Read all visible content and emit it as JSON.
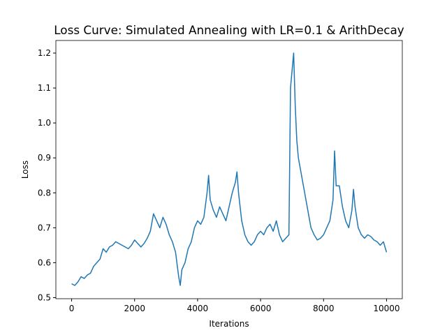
{
  "chart_data": {
    "type": "line",
    "title": "Loss Curve: Simulated Annealing with LR=0.1 & ArithDecay",
    "xlabel": "Iterations",
    "ylabel": "Loss",
    "x": [
      0,
      100,
      200,
      300,
      400,
      500,
      600,
      700,
      800,
      900,
      1000,
      1100,
      1200,
      1300,
      1400,
      1500,
      1600,
      1700,
      1800,
      1900,
      2000,
      2100,
      2200,
      2300,
      2400,
      2500,
      2600,
      2700,
      2800,
      2900,
      3000,
      3100,
      3200,
      3300,
      3400,
      3450,
      3500,
      3600,
      3700,
      3800,
      3900,
      4000,
      4100,
      4200,
      4300,
      4350,
      4400,
      4500,
      4600,
      4700,
      4800,
      4900,
      5000,
      5100,
      5200,
      5250,
      5300,
      5400,
      5500,
      5600,
      5700,
      5800,
      5900,
      6000,
      6100,
      6200,
      6300,
      6400,
      6500,
      6600,
      6700,
      6800,
      6900,
      6950,
      7000,
      7050,
      7100,
      7150,
      7200,
      7300,
      7400,
      7500,
      7600,
      7700,
      7800,
      7900,
      8000,
      8100,
      8200,
      8300,
      8350,
      8400,
      8500,
      8600,
      8700,
      8800,
      8900,
      8950,
      9000,
      9100,
      9200,
      9300,
      9400,
      9500,
      9600,
      9700,
      9800,
      9900,
      10000
    ],
    "series": [
      {
        "name": "Loss",
        "color": "#1f77b4",
        "values": [
          0.54,
          0.535,
          0.545,
          0.56,
          0.555,
          0.565,
          0.57,
          0.59,
          0.6,
          0.61,
          0.64,
          0.63,
          0.645,
          0.65,
          0.66,
          0.655,
          0.65,
          0.645,
          0.64,
          0.65,
          0.665,
          0.655,
          0.645,
          0.655,
          0.67,
          0.69,
          0.74,
          0.72,
          0.7,
          0.73,
          0.71,
          0.68,
          0.66,
          0.63,
          0.56,
          0.535,
          0.58,
          0.6,
          0.64,
          0.66,
          0.7,
          0.72,
          0.71,
          0.73,
          0.8,
          0.85,
          0.78,
          0.75,
          0.73,
          0.76,
          0.74,
          0.72,
          0.76,
          0.8,
          0.83,
          0.86,
          0.8,
          0.72,
          0.68,
          0.66,
          0.65,
          0.66,
          0.68,
          0.69,
          0.68,
          0.7,
          0.71,
          0.69,
          0.72,
          0.68,
          0.66,
          0.67,
          0.68,
          1.1,
          1.15,
          1.2,
          1.05,
          0.95,
          0.9,
          0.85,
          0.8,
          0.75,
          0.7,
          0.68,
          0.665,
          0.67,
          0.68,
          0.7,
          0.72,
          0.78,
          0.92,
          0.82,
          0.82,
          0.76,
          0.72,
          0.7,
          0.75,
          0.81,
          0.76,
          0.7,
          0.68,
          0.67,
          0.68,
          0.675,
          0.665,
          0.66,
          0.65,
          0.66,
          0.63
        ]
      }
    ],
    "xlim": [
      -500,
      10500
    ],
    "ylim": [
      0.497,
      1.236
    ],
    "xticks": [
      0,
      2000,
      4000,
      6000,
      8000,
      10000
    ],
    "yticks": [
      {
        "value": 0.5,
        "label": "0.5"
      },
      {
        "value": 0.6,
        "label": "0.6"
      },
      {
        "value": 0.7,
        "label": "0.7"
      },
      {
        "value": 0.8,
        "label": "0.8"
      },
      {
        "value": 0.9,
        "label": "0.9"
      },
      {
        "value": 1.0,
        "label": "1.0"
      },
      {
        "value": 1.1,
        "label": "1.1"
      },
      {
        "value": 1.2,
        "label": "1.2"
      }
    ],
    "grid": false
  }
}
